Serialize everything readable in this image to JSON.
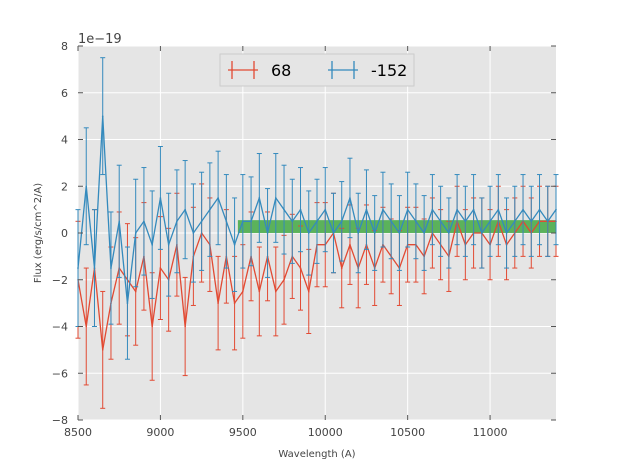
{
  "chart_data": {
    "type": "line",
    "title": "",
    "xlabel": "Wavelength (A)",
    "ylabel": "Flux (erg/s/cm^2/A)",
    "y_exponent_label": "1e−19",
    "xlim": [
      8500,
      11400
    ],
    "ylim": [
      -8,
      8
    ],
    "x_ticks": [
      8500,
      9000,
      9500,
      10000,
      10500,
      11000
    ],
    "y_ticks": [
      -8,
      -6,
      -4,
      -2,
      0,
      2,
      4,
      6,
      8
    ],
    "x_tick_labels": [
      "8500",
      "9000",
      "9500",
      "10000",
      "10500",
      "11000"
    ],
    "y_tick_labels": [
      "−8",
      "−6",
      "−4",
      "−2",
      "0",
      "2",
      "4",
      "6",
      "8"
    ],
    "grid": true,
    "legend_position": "top-center",
    "shaded_band": {
      "x_from": 9470,
      "x_to": 11400,
      "y_from": 0,
      "y_to": 0.55,
      "color": "#2ca02c"
    },
    "series": [
      {
        "name": "68",
        "color": "#e24a33",
        "x": [
          8500,
          8550,
          8600,
          8650,
          8700,
          8750,
          8800,
          8850,
          8900,
          8950,
          9000,
          9050,
          9100,
          9150,
          9200,
          9250,
          9300,
          9350,
          9400,
          9450,
          9500,
          9550,
          9600,
          9650,
          9700,
          9750,
          9800,
          9850,
          9900,
          9950,
          10000,
          10050,
          10100,
          10150,
          10200,
          10250,
          10300,
          10350,
          10400,
          10450,
          10500,
          10550,
          10600,
          10650,
          10700,
          10750,
          10800,
          10850,
          10900,
          10950,
          11000,
          11050,
          11100,
          11150,
          11200,
          11250,
          11300,
          11350,
          11400
        ],
        "y": [
          -2.0,
          -4.0,
          -1.5,
          -5.0,
          -3.0,
          -1.5,
          -2.0,
          -2.5,
          -1.0,
          -4.0,
          -1.5,
          -2.0,
          -0.5,
          -4.0,
          -1.0,
          0.0,
          -0.5,
          -3.0,
          -1.0,
          -3.0,
          -2.5,
          -1.0,
          -2.5,
          -1.0,
          -2.5,
          -2.0,
          -1.0,
          -1.5,
          -2.5,
          -0.5,
          -0.5,
          0.0,
          -1.5,
          -0.5,
          -1.5,
          -0.5,
          -1.5,
          -0.5,
          -1.0,
          -1.5,
          -0.5,
          -0.5,
          -1.0,
          0.0,
          -0.5,
          -1.0,
          0.5,
          -0.5,
          0.0,
          0.0,
          -0.5,
          0.5,
          -0.5,
          0.0,
          0.5,
          0.0,
          0.5,
          0.5,
          0.5
        ],
        "yerr": [
          2.5,
          2.5,
          2.5,
          2.5,
          2.4,
          2.4,
          2.4,
          2.3,
          2.3,
          2.3,
          2.2,
          2.2,
          2.2,
          2.1,
          2.1,
          2.1,
          2.0,
          2.0,
          2.0,
          2.0,
          2.0,
          1.9,
          1.9,
          1.9,
          1.9,
          1.9,
          1.8,
          1.8,
          1.8,
          1.8,
          1.8,
          1.7,
          1.7,
          1.7,
          1.7,
          1.7,
          1.6,
          1.6,
          1.6,
          1.6,
          1.6,
          1.6,
          1.6,
          1.5,
          1.5,
          1.5,
          1.5,
          1.5,
          1.5,
          1.5,
          1.5,
          1.5,
          1.5,
          1.5,
          1.5,
          1.5,
          1.5,
          1.5,
          1.5
        ]
      },
      {
        "name": "-152",
        "color": "#348abd",
        "x": [
          8500,
          8550,
          8600,
          8650,
          8700,
          8750,
          8800,
          8850,
          8900,
          8950,
          9000,
          9050,
          9100,
          9150,
          9200,
          9250,
          9300,
          9350,
          9400,
          9450,
          9500,
          9550,
          9600,
          9650,
          9700,
          9750,
          9800,
          9850,
          9900,
          9950,
          10000,
          10050,
          10100,
          10150,
          10200,
          10250,
          10300,
          10350,
          10400,
          10450,
          10500,
          10550,
          10600,
          10650,
          10700,
          10750,
          10800,
          10850,
          10900,
          10950,
          11000,
          11050,
          11100,
          11150,
          11200,
          11250,
          11300,
          11350,
          11400
        ],
        "y": [
          -1.5,
          2.0,
          -1.5,
          5.0,
          -1.5,
          0.5,
          -3.0,
          0.0,
          0.5,
          -0.5,
          1.5,
          -0.5,
          0.5,
          1.0,
          0.0,
          0.5,
          1.0,
          1.5,
          0.5,
          -0.5,
          0.5,
          0.5,
          1.5,
          0.0,
          1.5,
          1.0,
          0.5,
          1.0,
          0.0,
          0.5,
          1.0,
          0.0,
          0.5,
          1.5,
          0.0,
          1.0,
          0.0,
          1.0,
          0.5,
          0.0,
          1.0,
          0.5,
          0.0,
          1.0,
          0.5,
          0.0,
          1.0,
          0.5,
          1.0,
          0.0,
          0.5,
          1.0,
          0.0,
          0.5,
          1.0,
          0.5,
          1.0,
          0.5,
          1.0
        ],
        "yerr": [
          2.5,
          2.5,
          2.5,
          2.5,
          2.4,
          2.4,
          2.4,
          2.3,
          2.3,
          2.3,
          2.2,
          2.2,
          2.2,
          2.1,
          2.1,
          2.1,
          2.0,
          2.0,
          2.0,
          2.0,
          2.0,
          1.9,
          1.9,
          1.9,
          1.9,
          1.9,
          1.8,
          1.8,
          1.8,
          1.8,
          1.8,
          1.7,
          1.7,
          1.7,
          1.7,
          1.7,
          1.6,
          1.6,
          1.6,
          1.6,
          1.6,
          1.6,
          1.6,
          1.5,
          1.5,
          1.5,
          1.5,
          1.5,
          1.5,
          1.5,
          1.5,
          1.5,
          1.5,
          1.5,
          1.5,
          1.5,
          1.5,
          1.5,
          1.5
        ]
      }
    ]
  }
}
